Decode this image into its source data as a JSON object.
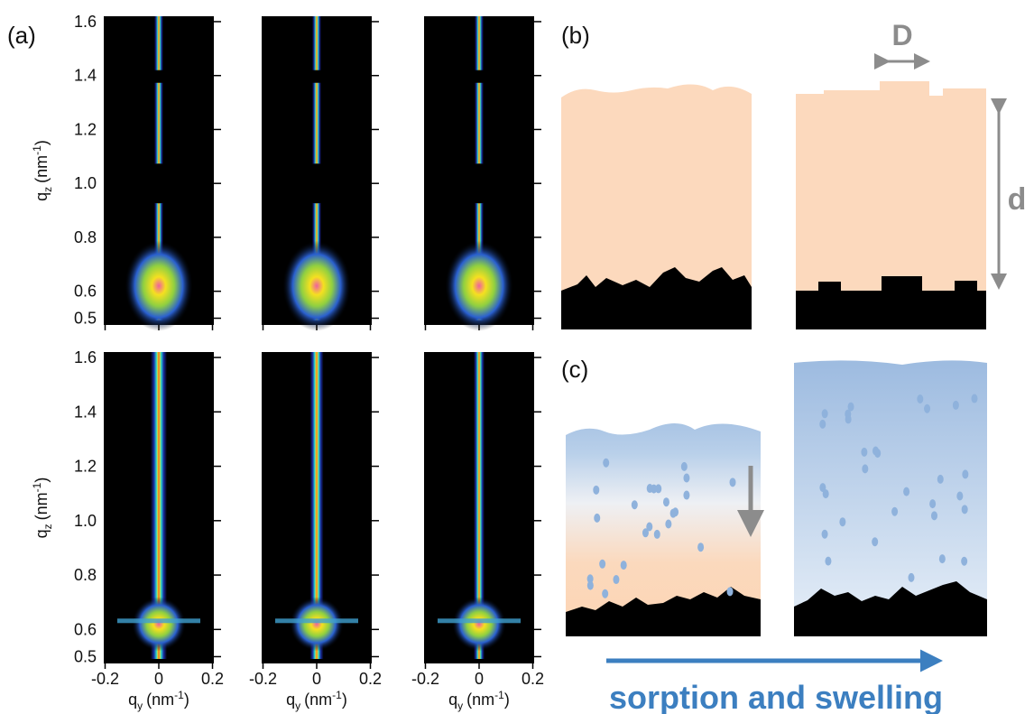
{
  "panel_a": {
    "label": "(a)",
    "ylabel": {
      "q": "q",
      "sub": "z",
      "unit": "(nm",
      "sup": "-1",
      "close": ")"
    },
    "xlabel": {
      "q": "q",
      "sub": "y",
      "unit": "(nm",
      "sup": "-1",
      "close": ")"
    },
    "xlim": [
      -0.205,
      0.205
    ],
    "xticks": [
      -0.2,
      0,
      0.2
    ],
    "ylim": [
      0.475,
      1.62
    ],
    "yticks": [
      0.5,
      0.6,
      0.8,
      {
        "value": 1,
        "label": "1.0"
      },
      1.2,
      1.4,
      1.6
    ]
  },
  "panel_b": {
    "label": "(b)",
    "lateral": "D",
    "thickness": "d"
  },
  "panel_c": {
    "label": "(c)",
    "caption": "sorption and swelling"
  }
}
